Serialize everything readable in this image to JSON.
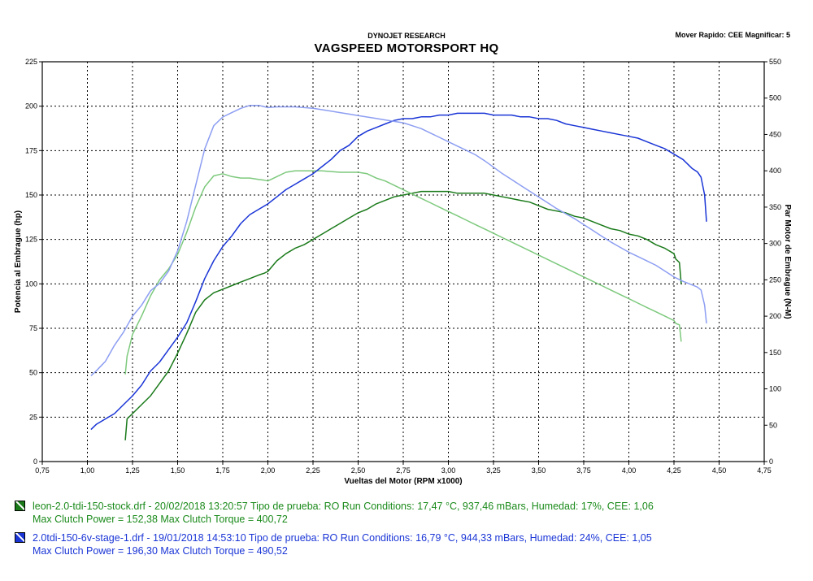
{
  "header": {
    "company": "DYNOJET RESEARCH",
    "title": "VAGSPEED MOTORSPORT HQ",
    "settings": "Mover Rapido: CEE  Magnificar: 5"
  },
  "chart_data": {
    "type": "line",
    "title": "VAGSPEED MOTORSPORT HQ",
    "xlabel": "Vueltas del Motor  (RPM x1000)",
    "ylabel_left": "Potencia al Embrague (hp)",
    "ylabel_right": "Par Motor de Embrague (N-M)",
    "xlim": [
      0.75,
      4.75
    ],
    "ylim_left": [
      0,
      225
    ],
    "ylim_right": [
      0,
      550
    ],
    "grid": true,
    "x_ticks": [
      "0,75",
      "1,00",
      "1,25",
      "1,50",
      "1,75",
      "2,00",
      "2,25",
      "2,50",
      "2,75",
      "3,00",
      "3,25",
      "3,50",
      "3,75",
      "4,00",
      "4,25",
      "4,50",
      "4,75"
    ],
    "y_left_ticks": [
      "0",
      "25",
      "50",
      "75",
      "100",
      "125",
      "150",
      "175",
      "200",
      "225"
    ],
    "y_right_ticks": [
      "0",
      "50",
      "100",
      "150",
      "200",
      "250",
      "300",
      "350",
      "400",
      "450",
      "500",
      "550"
    ],
    "series": [
      {
        "name": "leon-2.0-tdi-150-stock.drf",
        "quantity": "power",
        "axis": "left",
        "color": "#1a7a1a",
        "x": [
          1.21,
          1.22,
          1.25,
          1.3,
          1.35,
          1.4,
          1.45,
          1.5,
          1.55,
          1.6,
          1.65,
          1.7,
          1.75,
          1.8,
          1.85,
          1.9,
          1.95,
          1.98,
          2.0,
          2.05,
          2.1,
          2.15,
          2.2,
          2.25,
          2.3,
          2.35,
          2.4,
          2.45,
          2.5,
          2.55,
          2.6,
          2.65,
          2.7,
          2.75,
          2.8,
          2.85,
          2.9,
          2.95,
          3.0,
          3.05,
          3.1,
          3.15,
          3.2,
          3.25,
          3.3,
          3.35,
          3.4,
          3.45,
          3.5,
          3.55,
          3.6,
          3.65,
          3.7,
          3.75,
          3.8,
          3.85,
          3.9,
          3.95,
          4.0,
          4.05,
          4.1,
          4.15,
          4.2,
          4.25,
          4.26,
          4.28,
          4.29
        ],
        "y": [
          12,
          24,
          27,
          32,
          37,
          44,
          51,
          61,
          72,
          84,
          91,
          95,
          97,
          99,
          101,
          103,
          105,
          106,
          107,
          113,
          117,
          120,
          122,
          125,
          128,
          131,
          134,
          137,
          140,
          142,
          145,
          147,
          149,
          150,
          151,
          152,
          152,
          152,
          152,
          151,
          151,
          151,
          151,
          150,
          149,
          148,
          147,
          146,
          144,
          142,
          141,
          140,
          138,
          137,
          135,
          133,
          131,
          130,
          128,
          127,
          125,
          122,
          120,
          117,
          114,
          112,
          100
        ]
      },
      {
        "name": "leon-2.0-tdi-150-stock.drf",
        "quantity": "torque",
        "axis": "right",
        "color": "#7dc97d",
        "x": [
          1.21,
          1.22,
          1.25,
          1.3,
          1.35,
          1.4,
          1.45,
          1.5,
          1.55,
          1.6,
          1.65,
          1.7,
          1.75,
          1.8,
          1.85,
          1.9,
          1.95,
          1.98,
          2.0,
          2.05,
          2.1,
          2.15,
          2.2,
          2.25,
          2.3,
          2.35,
          2.4,
          2.45,
          2.5,
          2.55,
          2.6,
          2.65,
          2.7,
          2.75,
          2.8,
          2.85,
          2.9,
          2.95,
          3.0,
          3.05,
          3.1,
          3.15,
          3.2,
          3.25,
          3.3,
          3.35,
          3.4,
          3.45,
          3.5,
          3.55,
          3.6,
          3.65,
          3.7,
          3.75,
          3.8,
          3.85,
          3.9,
          3.95,
          4.0,
          4.05,
          4.1,
          4.15,
          4.2,
          4.25,
          4.26,
          4.28,
          4.29
        ],
        "y": [
          120,
          145,
          175,
          200,
          228,
          250,
          265,
          285,
          315,
          350,
          378,
          393,
          396,
          392,
          390,
          390,
          388,
          387,
          386,
          392,
          398,
          400,
          400,
          400,
          400,
          399,
          398,
          398,
          398,
          396,
          390,
          386,
          380,
          374,
          368,
          362,
          356,
          350,
          344,
          338,
          332,
          326,
          320,
          314,
          308,
          302,
          296,
          290,
          284,
          278,
          272,
          266,
          260,
          254,
          248,
          242,
          236,
          230,
          224,
          218,
          212,
          206,
          200,
          194,
          190,
          188,
          165
        ]
      },
      {
        "name": "2.0tdi-150-6v-stage-1.drf",
        "quantity": "power",
        "axis": "left",
        "color": "#1a35d6",
        "x": [
          1.02,
          1.05,
          1.1,
          1.15,
          1.2,
          1.25,
          1.3,
          1.35,
          1.4,
          1.45,
          1.5,
          1.55,
          1.6,
          1.65,
          1.7,
          1.75,
          1.8,
          1.85,
          1.9,
          1.95,
          2.0,
          2.05,
          2.1,
          2.15,
          2.2,
          2.25,
          2.3,
          2.35,
          2.4,
          2.45,
          2.5,
          2.55,
          2.6,
          2.65,
          2.7,
          2.75,
          2.8,
          2.85,
          2.9,
          2.95,
          3.0,
          3.05,
          3.1,
          3.15,
          3.2,
          3.25,
          3.3,
          3.35,
          3.4,
          3.45,
          3.5,
          3.55,
          3.6,
          3.65,
          3.7,
          3.75,
          3.8,
          3.85,
          3.9,
          3.95,
          4.0,
          4.05,
          4.1,
          4.15,
          4.2,
          4.25,
          4.3,
          4.35,
          4.38,
          4.4,
          4.42,
          4.43
        ],
        "y": [
          18,
          21,
          24,
          27,
          32,
          37,
          43,
          51,
          56,
          63,
          70,
          78,
          90,
          103,
          113,
          121,
          127,
          134,
          139,
          142,
          145,
          149,
          153,
          156,
          159,
          162,
          166,
          170,
          175,
          178,
          183,
          186,
          188,
          190,
          192,
          193,
          193,
          194,
          194,
          195,
          195,
          196,
          196,
          196,
          196,
          195,
          195,
          195,
          194,
          194,
          193,
          193,
          192,
          190,
          189,
          188,
          187,
          186,
          185,
          184,
          183,
          182,
          180,
          178,
          176,
          173,
          170,
          165,
          163,
          160,
          150,
          135
        ]
      },
      {
        "name": "2.0tdi-150-6v-stage-1.drf",
        "quantity": "torque",
        "axis": "right",
        "color": "#8d9ef2",
        "x": [
          1.02,
          1.05,
          1.1,
          1.15,
          1.2,
          1.25,
          1.3,
          1.35,
          1.4,
          1.45,
          1.5,
          1.55,
          1.6,
          1.65,
          1.7,
          1.75,
          1.8,
          1.85,
          1.9,
          1.95,
          2.0,
          2.05,
          2.1,
          2.15,
          2.2,
          2.25,
          2.3,
          2.35,
          2.4,
          2.45,
          2.5,
          2.55,
          2.6,
          2.65,
          2.7,
          2.75,
          2.8,
          2.85,
          2.9,
          2.95,
          3.0,
          3.05,
          3.1,
          3.15,
          3.2,
          3.25,
          3.3,
          3.35,
          3.4,
          3.45,
          3.5,
          3.55,
          3.6,
          3.65,
          3.7,
          3.75,
          3.8,
          3.85,
          3.9,
          3.95,
          4.0,
          4.05,
          4.1,
          4.15,
          4.2,
          4.25,
          4.3,
          4.35,
          4.38,
          4.4,
          4.42,
          4.43
        ],
        "y": [
          118,
          125,
          138,
          160,
          178,
          200,
          215,
          235,
          245,
          262,
          290,
          330,
          380,
          430,
          462,
          474,
          480,
          486,
          490,
          490,
          487,
          488,
          488,
          488,
          487,
          486,
          484,
          482,
          480,
          478,
          476,
          474,
          472,
          470,
          468,
          466,
          462,
          458,
          452,
          446,
          440,
          434,
          428,
          422,
          414,
          405,
          396,
          388,
          380,
          372,
          364,
          356,
          348,
          341,
          334,
          326,
          318,
          310,
          302,
          295,
          288,
          282,
          276,
          270,
          262,
          254,
          248,
          243,
          240,
          236,
          215,
          190
        ]
      }
    ]
  },
  "legend": [
    {
      "line1": "leon-2.0-tdi-150-stock.drf - 20/02/2018 13:20:57  Tipo de prueba: RO  Run Conditions: 17,47 °C, 937,46 mBars,  Humedad: 17%, CEE: 1,06",
      "line2": "Max Clutch Power = 152,38  Max Clutch Torque = 400,72",
      "color": "#1a7a1a",
      "text_color": "#1a8a1a"
    },
    {
      "line1": "2.0tdi-150-6v-stage-1.drf - 19/01/2018 14:53:10  Tipo de prueba: RO  Run Conditions: 16,79 °C, 944,33 mBars,  Humedad: 24%, CEE: 1,05",
      "line2": "Max Clutch Power = 196,30  Max Clutch Torque = 490,52",
      "color": "#1a35d6",
      "text_color": "#1a35d6"
    }
  ]
}
